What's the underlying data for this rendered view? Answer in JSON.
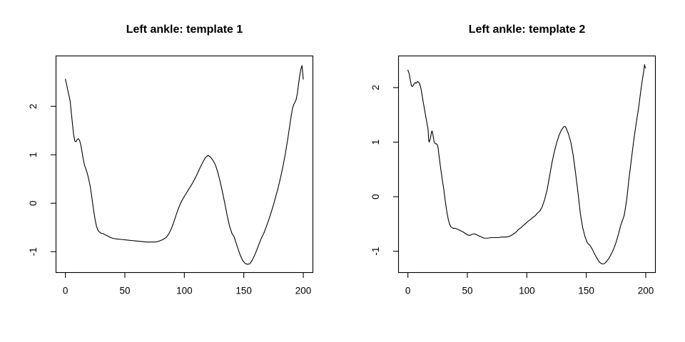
{
  "canvas": {
    "background": "#ffffff",
    "foreground": "#000000"
  },
  "chart_data": [
    {
      "type": "line",
      "title": "Left ankle: template 1",
      "xlabel": "",
      "ylabel": "",
      "x_ticks": [
        0,
        50,
        100,
        150,
        200
      ],
      "y_ticks": [
        -1,
        0,
        1,
        2
      ],
      "xlim": [
        -7.9,
        208.1
      ],
      "ylim": [
        -1.43,
        3.04
      ],
      "grid": false,
      "legend": "none",
      "line_color": "#000000",
      "points": [
        [
          0,
          2.56
        ],
        [
          1,
          2.45
        ],
        [
          2,
          2.33
        ],
        [
          3,
          2.22
        ],
        [
          4,
          2.11
        ],
        [
          5,
          1.86
        ],
        [
          6,
          1.62
        ],
        [
          7,
          1.4
        ],
        [
          8,
          1.28
        ],
        [
          9,
          1.27
        ],
        [
          10,
          1.32
        ],
        [
          11,
          1.33
        ],
        [
          12,
          1.29
        ],
        [
          13,
          1.2
        ],
        [
          14,
          1.06
        ],
        [
          15,
          0.91
        ],
        [
          16,
          0.79
        ],
        [
          17,
          0.72
        ],
        [
          18,
          0.65
        ],
        [
          19,
          0.56
        ],
        [
          20,
          0.45
        ],
        [
          21,
          0.33
        ],
        [
          22,
          0.16
        ],
        [
          23,
          -0.02
        ],
        [
          24,
          -0.19
        ],
        [
          25,
          -0.34
        ],
        [
          26,
          -0.46
        ],
        [
          27,
          -0.54
        ],
        [
          28,
          -0.58
        ],
        [
          30,
          -0.62
        ],
        [
          32,
          -0.63
        ],
        [
          34,
          -0.66
        ],
        [
          36,
          -0.68
        ],
        [
          38,
          -0.71
        ],
        [
          41,
          -0.73
        ],
        [
          44,
          -0.74
        ],
        [
          48,
          -0.75
        ],
        [
          52,
          -0.76
        ],
        [
          56,
          -0.77
        ],
        [
          60,
          -0.78
        ],
        [
          64,
          -0.79
        ],
        [
          68,
          -0.8
        ],
        [
          72,
          -0.8
        ],
        [
          76,
          -0.8
        ],
        [
          79,
          -0.78
        ],
        [
          82,
          -0.75
        ],
        [
          85,
          -0.7
        ],
        [
          87,
          -0.63
        ],
        [
          89,
          -0.53
        ],
        [
          91,
          -0.4
        ],
        [
          93,
          -0.25
        ],
        [
          95,
          -0.11
        ],
        [
          97,
          0.01
        ],
        [
          99,
          0.1
        ],
        [
          101,
          0.18
        ],
        [
          104,
          0.3
        ],
        [
          107,
          0.42
        ],
        [
          110,
          0.56
        ],
        [
          113,
          0.72
        ],
        [
          116,
          0.87
        ],
        [
          118,
          0.95
        ],
        [
          120,
          0.99
        ],
        [
          122,
          0.95
        ],
        [
          124,
          0.89
        ],
        [
          126,
          0.8
        ],
        [
          128,
          0.65
        ],
        [
          130,
          0.46
        ],
        [
          132,
          0.24
        ],
        [
          134,
          0.0
        ],
        [
          136,
          -0.25
        ],
        [
          138,
          -0.47
        ],
        [
          140,
          -0.62
        ],
        [
          142,
          -0.7
        ],
        [
          143,
          -0.78
        ],
        [
          145,
          -0.93
        ],
        [
          147,
          -1.07
        ],
        [
          149,
          -1.18
        ],
        [
          151,
          -1.24
        ],
        [
          153,
          -1.26
        ],
        [
          155,
          -1.25
        ],
        [
          157,
          -1.18
        ],
        [
          159,
          -1.08
        ],
        [
          161,
          -0.96
        ],
        [
          163,
          -0.83
        ],
        [
          165,
          -0.71
        ],
        [
          167,
          -0.61
        ],
        [
          169,
          -0.48
        ],
        [
          171,
          -0.34
        ],
        [
          173,
          -0.19
        ],
        [
          175,
          -0.03
        ],
        [
          177,
          0.15
        ],
        [
          179,
          0.33
        ],
        [
          181,
          0.54
        ],
        [
          183,
          0.77
        ],
        [
          185,
          1.03
        ],
        [
          187,
          1.33
        ],
        [
          189,
          1.66
        ],
        [
          190,
          1.82
        ],
        [
          191,
          1.96
        ],
        [
          192,
          2.04
        ],
        [
          193,
          2.08
        ],
        [
          194,
          2.14
        ],
        [
          195,
          2.26
        ],
        [
          196,
          2.45
        ],
        [
          197,
          2.63
        ],
        [
          198,
          2.77
        ],
        [
          199,
          2.84
        ],
        [
          200,
          2.56
        ]
      ]
    },
    {
      "type": "line",
      "title": "Left ankle: template 2",
      "xlabel": "",
      "ylabel": "",
      "x_ticks": [
        0,
        50,
        100,
        150,
        200
      ],
      "y_ticks": [
        -1,
        0,
        1,
        2
      ],
      "xlim": [
        -7.9,
        208.1
      ],
      "ylim": [
        -1.39,
        2.58
      ],
      "grid": false,
      "legend": "none",
      "line_color": "#000000",
      "points": [
        [
          0,
          2.32
        ],
        [
          1,
          2.26
        ],
        [
          2,
          2.14
        ],
        [
          3,
          2.03
        ],
        [
          4,
          2.02
        ],
        [
          5,
          2.06
        ],
        [
          6,
          2.09
        ],
        [
          7,
          2.08
        ],
        [
          8,
          2.11
        ],
        [
          9,
          2.1
        ],
        [
          10,
          2.06
        ],
        [
          11,
          1.98
        ],
        [
          12,
          1.85
        ],
        [
          13,
          1.72
        ],
        [
          14,
          1.6
        ],
        [
          15,
          1.47
        ],
        [
          16,
          1.35
        ],
        [
          17,
          1.23
        ],
        [
          17.5,
          1.03
        ],
        [
          18,
          1.0
        ],
        [
          19,
          1.08
        ],
        [
          20,
          1.2
        ],
        [
          20.5,
          1.2
        ],
        [
          21,
          1.14
        ],
        [
          22,
          1.01
        ],
        [
          23,
          0.97
        ],
        [
          24,
          0.97
        ],
        [
          25,
          0.94
        ],
        [
          25.5,
          0.88
        ],
        [
          26,
          0.78
        ],
        [
          27,
          0.61
        ],
        [
          28,
          0.45
        ],
        [
          29,
          0.3
        ],
        [
          30,
          0.16
        ],
        [
          31,
          -0.01
        ],
        [
          32,
          -0.17
        ],
        [
          33,
          -0.31
        ],
        [
          34,
          -0.42
        ],
        [
          35,
          -0.5
        ],
        [
          36,
          -0.55
        ],
        [
          38,
          -0.58
        ],
        [
          40,
          -0.58
        ],
        [
          42,
          -0.6
        ],
        [
          44,
          -0.62
        ],
        [
          46,
          -0.64
        ],
        [
          48,
          -0.67
        ],
        [
          50,
          -0.7
        ],
        [
          52,
          -0.71
        ],
        [
          54,
          -0.69
        ],
        [
          56,
          -0.68
        ],
        [
          58,
          -0.7
        ],
        [
          60,
          -0.72
        ],
        [
          62,
          -0.74
        ],
        [
          64,
          -0.76
        ],
        [
          67,
          -0.76
        ],
        [
          70,
          -0.75
        ],
        [
          73,
          -0.75
        ],
        [
          76,
          -0.75
        ],
        [
          79,
          -0.74
        ],
        [
          82,
          -0.74
        ],
        [
          85,
          -0.73
        ],
        [
          87,
          -0.71
        ],
        [
          89,
          -0.68
        ],
        [
          91,
          -0.65
        ],
        [
          93,
          -0.6
        ],
        [
          95,
          -0.57
        ],
        [
          97,
          -0.53
        ],
        [
          99,
          -0.49
        ],
        [
          101,
          -0.45
        ],
        [
          103,
          -0.42
        ],
        [
          105,
          -0.38
        ],
        [
          107,
          -0.35
        ],
        [
          109,
          -0.3
        ],
        [
          111,
          -0.26
        ],
        [
          113,
          -0.18
        ],
        [
          115,
          -0.05
        ],
        [
          117,
          0.12
        ],
        [
          119,
          0.36
        ],
        [
          121,
          0.61
        ],
        [
          123,
          0.81
        ],
        [
          125,
          0.98
        ],
        [
          127,
          1.12
        ],
        [
          129,
          1.22
        ],
        [
          131,
          1.28
        ],
        [
          132,
          1.29
        ],
        [
          133,
          1.26
        ],
        [
          135,
          1.15
        ],
        [
          137,
          1.0
        ],
        [
          139,
          0.76
        ],
        [
          141,
          0.43
        ],
        [
          143,
          0.08
        ],
        [
          145,
          -0.31
        ],
        [
          147,
          -0.57
        ],
        [
          149,
          -0.74
        ],
        [
          151,
          -0.85
        ],
        [
          153,
          -0.89
        ],
        [
          155,
          -0.96
        ],
        [
          157,
          -1.05
        ],
        [
          159,
          -1.13
        ],
        [
          161,
          -1.2
        ],
        [
          163,
          -1.23
        ],
        [
          165,
          -1.23
        ],
        [
          167,
          -1.19
        ],
        [
          169,
          -1.13
        ],
        [
          171,
          -1.05
        ],
        [
          173,
          -0.96
        ],
        [
          175,
          -0.84
        ],
        [
          177,
          -0.69
        ],
        [
          179,
          -0.52
        ],
        [
          181,
          -0.4
        ],
        [
          182,
          -0.33
        ],
        [
          184,
          -0.05
        ],
        [
          186,
          0.35
        ],
        [
          188,
          0.7
        ],
        [
          190,
          1.05
        ],
        [
          192,
          1.35
        ],
        [
          194,
          1.63
        ],
        [
          195,
          1.8
        ],
        [
          196,
          1.97
        ],
        [
          197,
          2.12
        ],
        [
          198,
          2.26
        ],
        [
          199,
          2.42
        ],
        [
          199.5,
          2.37
        ],
        [
          200,
          2.36
        ]
      ]
    }
  ]
}
